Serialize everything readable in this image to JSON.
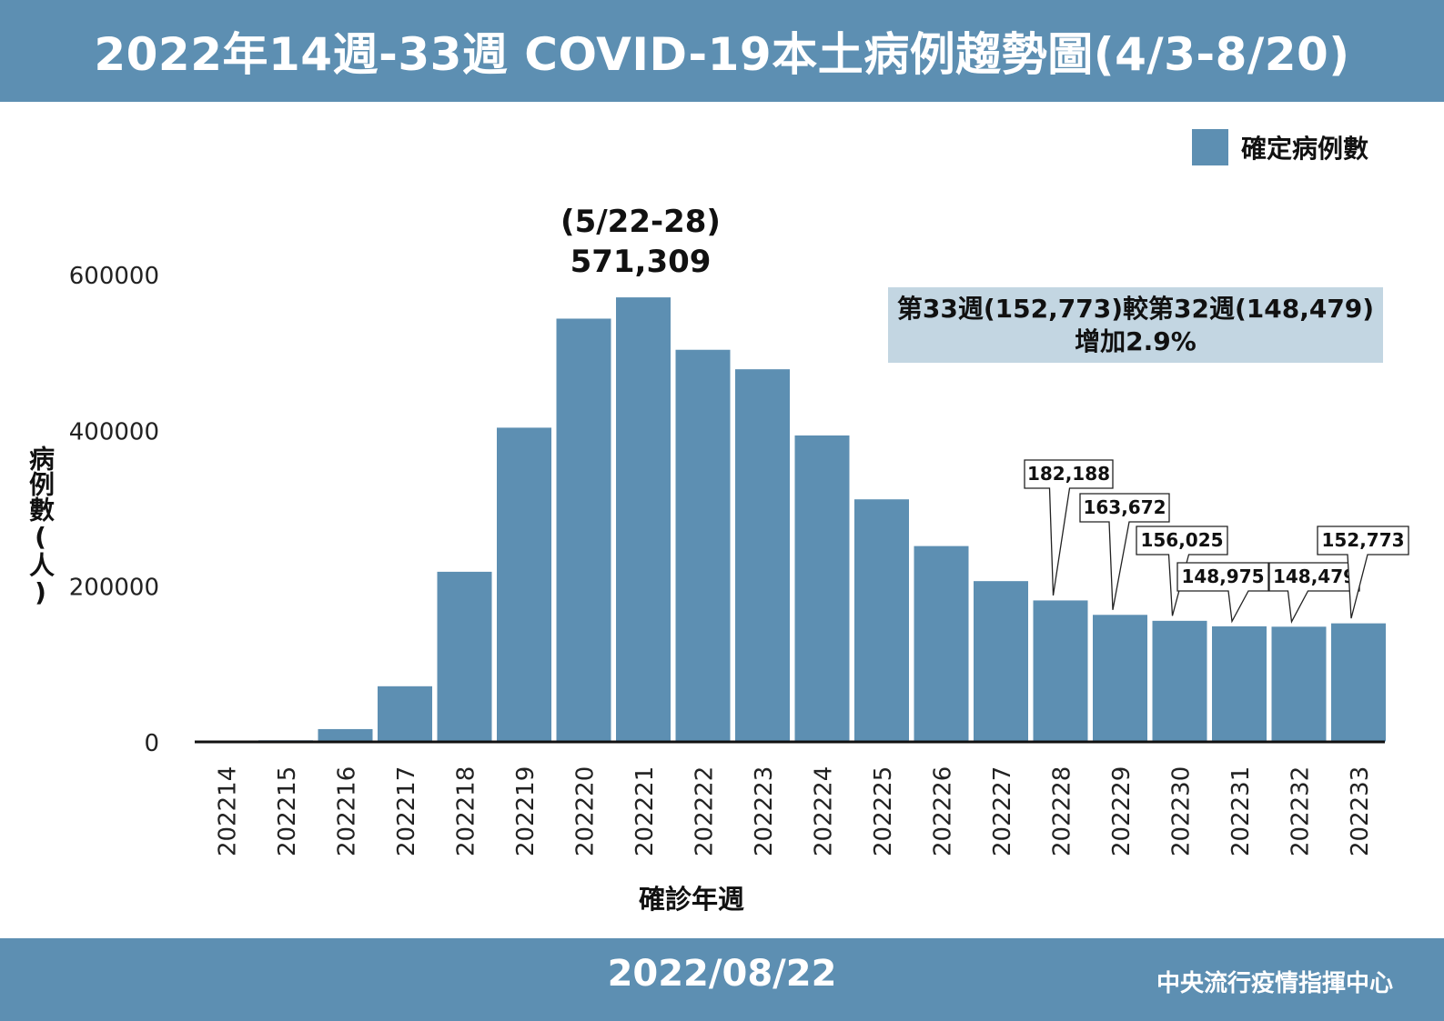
{
  "header": {
    "title": "2022年14週-33週 COVID-19本土病例趨勢圖(4/3-8/20)"
  },
  "footer": {
    "date": "2022/08/22",
    "org": "中央流行疫情指揮中心"
  },
  "colors": {
    "accent": "#5d8fb2",
    "callout_bg": "#c3d6e2",
    "axis": "#111111"
  },
  "legend": {
    "label": "確定病例數"
  },
  "peak_annotation": {
    "period": "(5/22-28)",
    "value": "571,309"
  },
  "callout": {
    "line1": "第33週(152,773)較第32週(148,479)",
    "line2": "增加2.9%"
  },
  "chart_data": {
    "type": "bar",
    "categories": [
      "202214",
      "202215",
      "202216",
      "202217",
      "202218",
      "202219",
      "202220",
      "202221",
      "202222",
      "202223",
      "202224",
      "202225",
      "202226",
      "202227",
      "202228",
      "202229",
      "202230",
      "202231",
      "202232",
      "202233"
    ],
    "series": [
      {
        "name": "確定病例數",
        "values": [
          400,
          2600,
          17000,
          72000,
          219000,
          404000,
          544000,
          571309,
          504000,
          479000,
          394000,
          312000,
          252000,
          207000,
          182188,
          163672,
          156025,
          148975,
          148479,
          152773
        ]
      }
    ],
    "data_labels": {
      "202228": "182,188",
      "202229": "163,672",
      "202230": "156,025",
      "202231": "148,975",
      "202232": "148,479",
      "202233": "152,773"
    },
    "ylabel": "病例數(人)",
    "xlabel": "確診年週",
    "yticks": [
      "0",
      "200000",
      "400000",
      "600000"
    ],
    "ylim": [
      0,
      600000
    ],
    "grid": false,
    "legend_position": "top-right"
  }
}
